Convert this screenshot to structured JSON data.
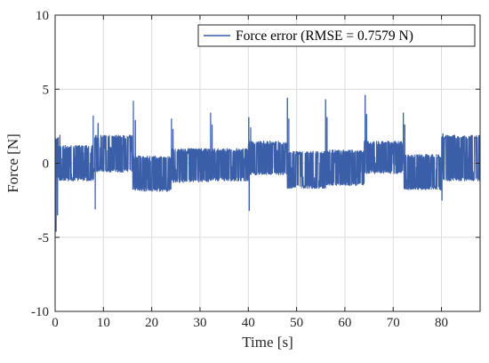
{
  "chart_data": {
    "type": "line",
    "xlabel": "Time [s]",
    "ylabel": "Force [N]",
    "xlim": [
      0,
      88
    ],
    "ylim": [
      -10,
      10
    ],
    "xticks": [
      0,
      10,
      20,
      30,
      40,
      50,
      60,
      70,
      80
    ],
    "yticks": [
      -10,
      -5,
      0,
      5,
      10
    ],
    "grid": true,
    "legend_position": "top-right",
    "series": [
      {
        "name": "Force error (RMSE = 0.7579 N)",
        "color": "#3b5ea8",
        "segments": [
          {
            "x0": 0.0,
            "x1": 0.8,
            "lo": -1.0,
            "hi": 1.8
          },
          {
            "x0": 0.8,
            "x1": 8.0,
            "lo": -1.2,
            "hi": 1.2
          },
          {
            "x0": 8.0,
            "x1": 16.0,
            "lo": -0.6,
            "hi": 1.9
          },
          {
            "x0": 16.0,
            "x1": 24.0,
            "lo": -1.9,
            "hi": 0.5
          },
          {
            "x0": 24.0,
            "x1": 32.0,
            "lo": -1.3,
            "hi": 1.0
          },
          {
            "x0": 32.0,
            "x1": 40.0,
            "lo": -1.2,
            "hi": 1.0
          },
          {
            "x0": 40.0,
            "x1": 48.0,
            "lo": -0.8,
            "hi": 1.5
          },
          {
            "x0": 48.0,
            "x1": 56.0,
            "lo": -1.7,
            "hi": 0.8
          },
          {
            "x0": 56.0,
            "x1": 64.0,
            "lo": -1.5,
            "hi": 0.9
          },
          {
            "x0": 64.0,
            "x1": 72.0,
            "lo": -0.7,
            "hi": 1.5
          },
          {
            "x0": 72.0,
            "x1": 80.0,
            "lo": -1.8,
            "hi": 0.6
          },
          {
            "x0": 80.0,
            "x1": 88.0,
            "lo": -1.2,
            "hi": 1.9
          }
        ],
        "spikes": [
          {
            "x": 0.2,
            "y": -4.6
          },
          {
            "x": 0.5,
            "y": -3.5
          },
          {
            "x": 1.0,
            "y": 1.9
          },
          {
            "x": 7.9,
            "y": 3.2
          },
          {
            "x": 8.3,
            "y": -3.1
          },
          {
            "x": 8.9,
            "y": 2.7
          },
          {
            "x": 16.2,
            "y": 4.2
          },
          {
            "x": 16.6,
            "y": 2.9
          },
          {
            "x": 24.1,
            "y": 3.0
          },
          {
            "x": 24.4,
            "y": 2.3
          },
          {
            "x": 32.2,
            "y": 3.4
          },
          {
            "x": 32.5,
            "y": 2.6
          },
          {
            "x": 40.1,
            "y": 3.1
          },
          {
            "x": 40.2,
            "y": -3.2
          },
          {
            "x": 40.5,
            "y": 2.4
          },
          {
            "x": 48.1,
            "y": 4.4
          },
          {
            "x": 48.4,
            "y": 3.0
          },
          {
            "x": 56.0,
            "y": 4.3
          },
          {
            "x": 56.3,
            "y": 3.1
          },
          {
            "x": 64.2,
            "y": 4.6
          },
          {
            "x": 64.5,
            "y": 3.3
          },
          {
            "x": 72.1,
            "y": 3.4
          },
          {
            "x": 72.4,
            "y": 2.6
          },
          {
            "x": 80.1,
            "y": -2.5
          },
          {
            "x": 80.3,
            "y": 2.0
          }
        ]
      }
    ]
  }
}
